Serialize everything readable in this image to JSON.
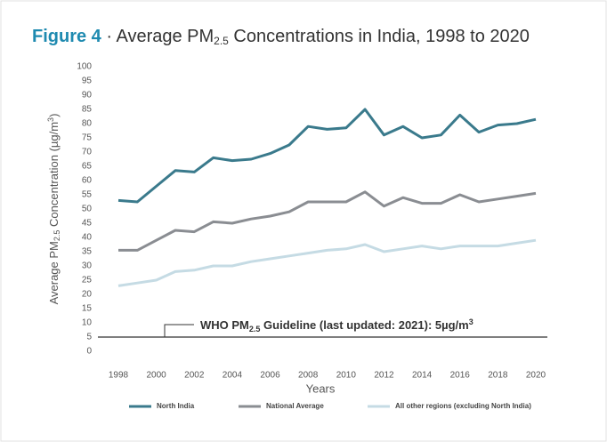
{
  "chart_data": {
    "type": "line",
    "title": {
      "label": "Figure 4",
      "before_subscript": "· Average PM",
      "subscript": "2.5",
      "after_subscript": "Concentrations in India, 1998 to 2020"
    },
    "y_label": {
      "before_subscript": "Average PM",
      "subscript": "2.5",
      "middle": "Concentration (µg/m",
      "superscript": "3",
      "end": ")"
    },
    "x_label": "Years",
    "annotation": {
      "before_subscript": "WHO PM",
      "subscript": "2.5",
      "after_subscript": "Guideline (last updated: 2021): 5µg/m",
      "superscript": "3",
      "value": 5
    },
    "x": [
      1998,
      1999,
      2000,
      2001,
      2002,
      2003,
      2004,
      2005,
      2006,
      2007,
      2008,
      2009,
      2010,
      2011,
      2012,
      2013,
      2014,
      2015,
      2016,
      2017,
      2018,
      2019,
      2020
    ],
    "series": [
      {
        "name": "North India",
        "color": "#3a7a8c",
        "values": [
          53,
          52.5,
          58,
          63.5,
          63,
          68,
          67,
          67.5,
          69.5,
          72.5,
          79,
          78,
          78.5,
          85,
          76,
          79,
          75,
          76,
          83,
          77,
          79.5,
          80,
          81.5
        ]
      },
      {
        "name": "National Average",
        "color": "#8a8d92",
        "values": [
          35.5,
          35.5,
          39,
          42.5,
          42,
          45.5,
          45,
          46.5,
          47.5,
          49,
          52.5,
          52.5,
          52.5,
          56,
          51,
          54,
          52,
          52,
          55,
          52.5,
          53.5,
          54.5,
          55.5
        ]
      },
      {
        "name": "All other regions (excluding North India)",
        "color": "#c5dbe4",
        "values": [
          23,
          24,
          25,
          28,
          28.5,
          30,
          30,
          31.5,
          32.5,
          33.5,
          34.5,
          35.5,
          36,
          37.5,
          35,
          36,
          37,
          36,
          37,
          37,
          37,
          38,
          39
        ]
      }
    ],
    "xlim": [
      1998,
      2020
    ],
    "xticks": [
      1998,
      2000,
      2002,
      2004,
      2006,
      2008,
      2010,
      2012,
      2014,
      2016,
      2018,
      2020
    ],
    "ylim": [
      0,
      100
    ],
    "yticks": [
      0,
      5,
      10,
      15,
      20,
      25,
      30,
      35,
      40,
      45,
      50,
      55,
      60,
      65,
      70,
      75,
      80,
      85,
      90,
      95,
      100
    ]
  }
}
